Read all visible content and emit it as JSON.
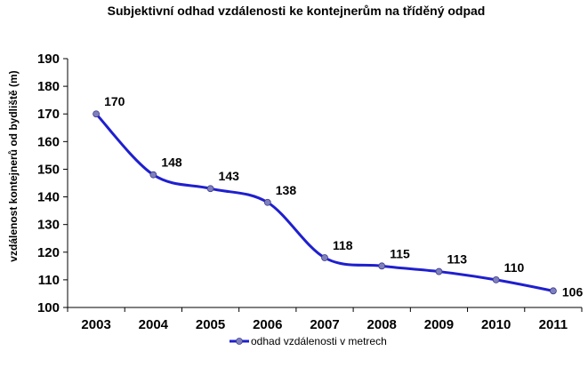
{
  "chart_data": {
    "type": "line",
    "title": "Subjektivní odhad vzdálenosti ke kontejnerům na tříděný odpad",
    "ylabel": "vzdálenost kontejnerů od bydliště (m)",
    "xlabel": "",
    "categories": [
      "2003",
      "2004",
      "2005",
      "2006",
      "2007",
      "2008",
      "2009",
      "2010",
      "2011"
    ],
    "series": [
      {
        "name": "odhad vzdálenosti v metrech",
        "values": [
          170,
          148,
          143,
          138,
          118,
          115,
          113,
          110,
          106
        ],
        "color": "#1f1fcf",
        "marker_color": "#7f7fbf"
      }
    ],
    "y_ticks": [
      "100",
      "110",
      "120",
      "130",
      "140",
      "150",
      "160",
      "170",
      "180",
      "190"
    ],
    "ylim": [
      100,
      190
    ],
    "grid": false,
    "legend": "bottom",
    "smooth": true
  }
}
